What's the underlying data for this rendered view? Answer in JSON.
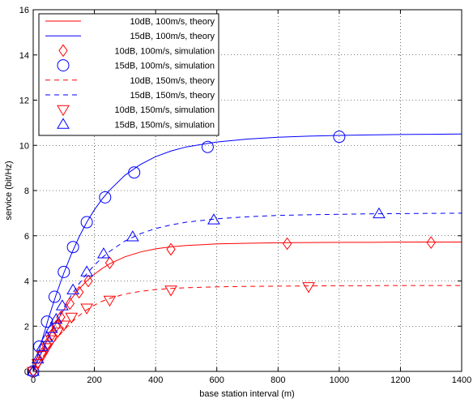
{
  "chart_data": {
    "type": "line",
    "title": "",
    "xlabel": "base station interval (m)",
    "ylabel": "service (bit/Hz)",
    "xlim": [
      0,
      1400
    ],
    "ylim": [
      0,
      16
    ],
    "xticks": [
      0,
      200,
      400,
      600,
      800,
      1000,
      1200,
      1400
    ],
    "yticks": [
      0,
      2,
      4,
      6,
      8,
      10,
      12,
      14,
      16
    ],
    "grid": true,
    "grid_style": "dotted",
    "legend_position": "top-left",
    "series": [
      {
        "name": "10dB, 100m/s, theory",
        "kind": "theory",
        "color": "#ff0000",
        "line": "solid",
        "x": [
          0,
          25,
          50,
          75,
          100,
          125,
          150,
          175,
          200,
          225,
          250,
          300,
          350,
          400,
          450,
          500,
          600,
          700,
          800,
          900,
          1000,
          1100,
          1200,
          1300,
          1400
        ],
        "y": [
          0,
          0.78,
          1.5,
          2.15,
          2.72,
          3.22,
          3.65,
          4.0,
          4.3,
          4.55,
          4.76,
          5.07,
          5.28,
          5.42,
          5.51,
          5.57,
          5.64,
          5.67,
          5.69,
          5.7,
          5.71,
          5.71,
          5.72,
          5.72,
          5.72
        ]
      },
      {
        "name": "15dB, 100m/s, theory",
        "kind": "theory",
        "color": "#0000ff",
        "line": "solid",
        "x": [
          0,
          25,
          50,
          75,
          100,
          125,
          150,
          175,
          200,
          225,
          250,
          300,
          350,
          400,
          450,
          500,
          600,
          700,
          800,
          900,
          1000,
          1100,
          1200,
          1300,
          1400
        ],
        "y": [
          0,
          1.2,
          2.35,
          3.4,
          4.35,
          5.2,
          5.95,
          6.6,
          7.15,
          7.62,
          8.02,
          8.68,
          9.15,
          9.5,
          9.75,
          9.93,
          10.15,
          10.28,
          10.36,
          10.41,
          10.44,
          10.46,
          10.48,
          10.49,
          10.5
        ]
      },
      {
        "name": "10dB, 100m/s, simulation",
        "kind": "simulation",
        "color": "#ff0000",
        "marker": "diamond",
        "x": [
          0,
          15,
          30,
          45,
          60,
          75,
          90,
          120,
          150,
          180,
          250,
          450,
          830,
          1300
        ],
        "y": [
          0,
          0.4,
          0.8,
          1.2,
          1.6,
          2.0,
          2.4,
          3.0,
          3.5,
          4.0,
          4.8,
          5.4,
          5.65,
          5.7
        ]
      },
      {
        "name": "15dB, 100m/s, simulation",
        "kind": "simulation",
        "color": "#0000ff",
        "marker": "circle",
        "x": [
          0,
          20,
          45,
          70,
          100,
          130,
          175,
          235,
          330,
          570,
          1000
        ],
        "y": [
          0,
          1.1,
          2.2,
          3.3,
          4.4,
          5.5,
          6.6,
          7.7,
          8.8,
          9.93,
          10.38
        ]
      },
      {
        "name": "10dB, 150m/s, theory",
        "kind": "theory",
        "color": "#ff0000",
        "line": "dashed",
        "x": [
          0,
          25,
          50,
          75,
          100,
          125,
          150,
          175,
          200,
          225,
          250,
          300,
          350,
          400,
          450,
          500,
          600,
          700,
          800,
          900,
          1000,
          1100,
          1200,
          1300,
          1400
        ],
        "y": [
          0,
          0.52,
          1.0,
          1.43,
          1.82,
          2.17,
          2.47,
          2.72,
          2.93,
          3.1,
          3.23,
          3.42,
          3.54,
          3.62,
          3.67,
          3.7,
          3.74,
          3.76,
          3.77,
          3.78,
          3.79,
          3.79,
          3.8,
          3.8,
          3.8
        ]
      },
      {
        "name": "15dB, 150m/s, theory",
        "kind": "theory",
        "color": "#0000ff",
        "line": "dashed",
        "x": [
          0,
          25,
          50,
          75,
          100,
          125,
          150,
          175,
          200,
          225,
          250,
          300,
          350,
          400,
          450,
          500,
          600,
          700,
          800,
          900,
          1000,
          1100,
          1200,
          1300,
          1400
        ],
        "y": [
          0,
          0.78,
          1.52,
          2.2,
          2.82,
          3.38,
          3.88,
          4.32,
          4.7,
          5.03,
          5.31,
          5.77,
          6.09,
          6.32,
          6.48,
          6.6,
          6.75,
          6.84,
          6.9,
          6.93,
          6.95,
          6.97,
          6.98,
          6.99,
          7.0
        ]
      },
      {
        "name": "10dB, 150m/s, simulation",
        "kind": "simulation",
        "color": "#ff0000",
        "marker": "triangle-down",
        "x": [
          0,
          15,
          30,
          45,
          60,
          80,
          100,
          125,
          175,
          250,
          450,
          900
        ],
        "y": [
          0,
          0.35,
          0.7,
          1.05,
          1.4,
          1.75,
          2.05,
          2.4,
          2.8,
          3.15,
          3.6,
          3.75
        ]
      },
      {
        "name": "15dB, 150m/s, simulation",
        "kind": "simulation",
        "color": "#0000ff",
        "marker": "triangle-up",
        "x": [
          0,
          15,
          30,
          45,
          60,
          75,
          95,
          130,
          175,
          230,
          325,
          590,
          1130
        ],
        "y": [
          0,
          0.55,
          1.1,
          1.5,
          1.9,
          2.3,
          2.9,
          3.6,
          4.4,
          5.2,
          5.95,
          6.7,
          6.97
        ]
      }
    ]
  }
}
